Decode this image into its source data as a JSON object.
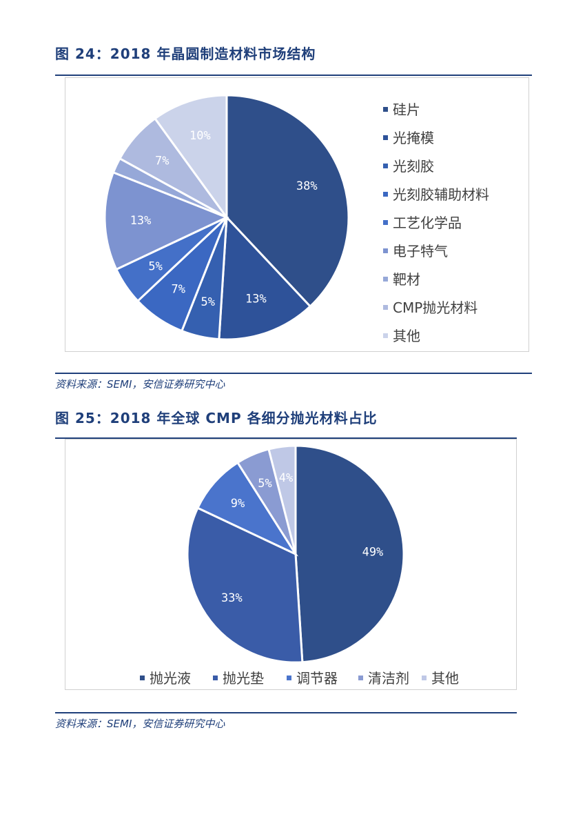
{
  "figure1": {
    "title": "图 24：2018 年晶圆制造材料市场结构",
    "source": "资料来源：SEMI，安信证券研究中心"
  },
  "figure2": {
    "title": "图 25：2018 年全球 CMP 各细分抛光材料占比",
    "source": "资料来源：SEMI，安信证券研究中心"
  },
  "chart_data": [
    {
      "type": "pie",
      "title": "",
      "legend_position": "right",
      "categories": [
        "硅片",
        "光掩模",
        "光刻胶",
        "光刻胶辅助材料",
        "工艺化学品",
        "电子特气",
        "靶材",
        "CMP抛光材料",
        "其他"
      ],
      "values": [
        38,
        13,
        5,
        7,
        5,
        13,
        2,
        7,
        10
      ],
      "labels": [
        "38%",
        "13%",
        "5%",
        "7%",
        "5%",
        "13%",
        "",
        "7%",
        "10%"
      ],
      "colors": [
        "#2f4f8a",
        "#2e5299",
        "#3560b0",
        "#3b68c2",
        "#4470c8",
        "#7d93d0",
        "#96a8d8",
        "#aebadf",
        "#cbd3ea"
      ]
    },
    {
      "type": "pie",
      "title": "",
      "legend_position": "bottom",
      "categories": [
        "抛光液",
        "抛光垫",
        "调节器",
        "清洁剂",
        "其他"
      ],
      "values": [
        49,
        33,
        9,
        5,
        4
      ],
      "labels": [
        "49%",
        "33%",
        "9%",
        "5%",
        "4%"
      ],
      "colors": [
        "#2f4f8a",
        "#3a5ca8",
        "#4a74cc",
        "#8a9bd2",
        "#bfc8e6"
      ]
    }
  ]
}
